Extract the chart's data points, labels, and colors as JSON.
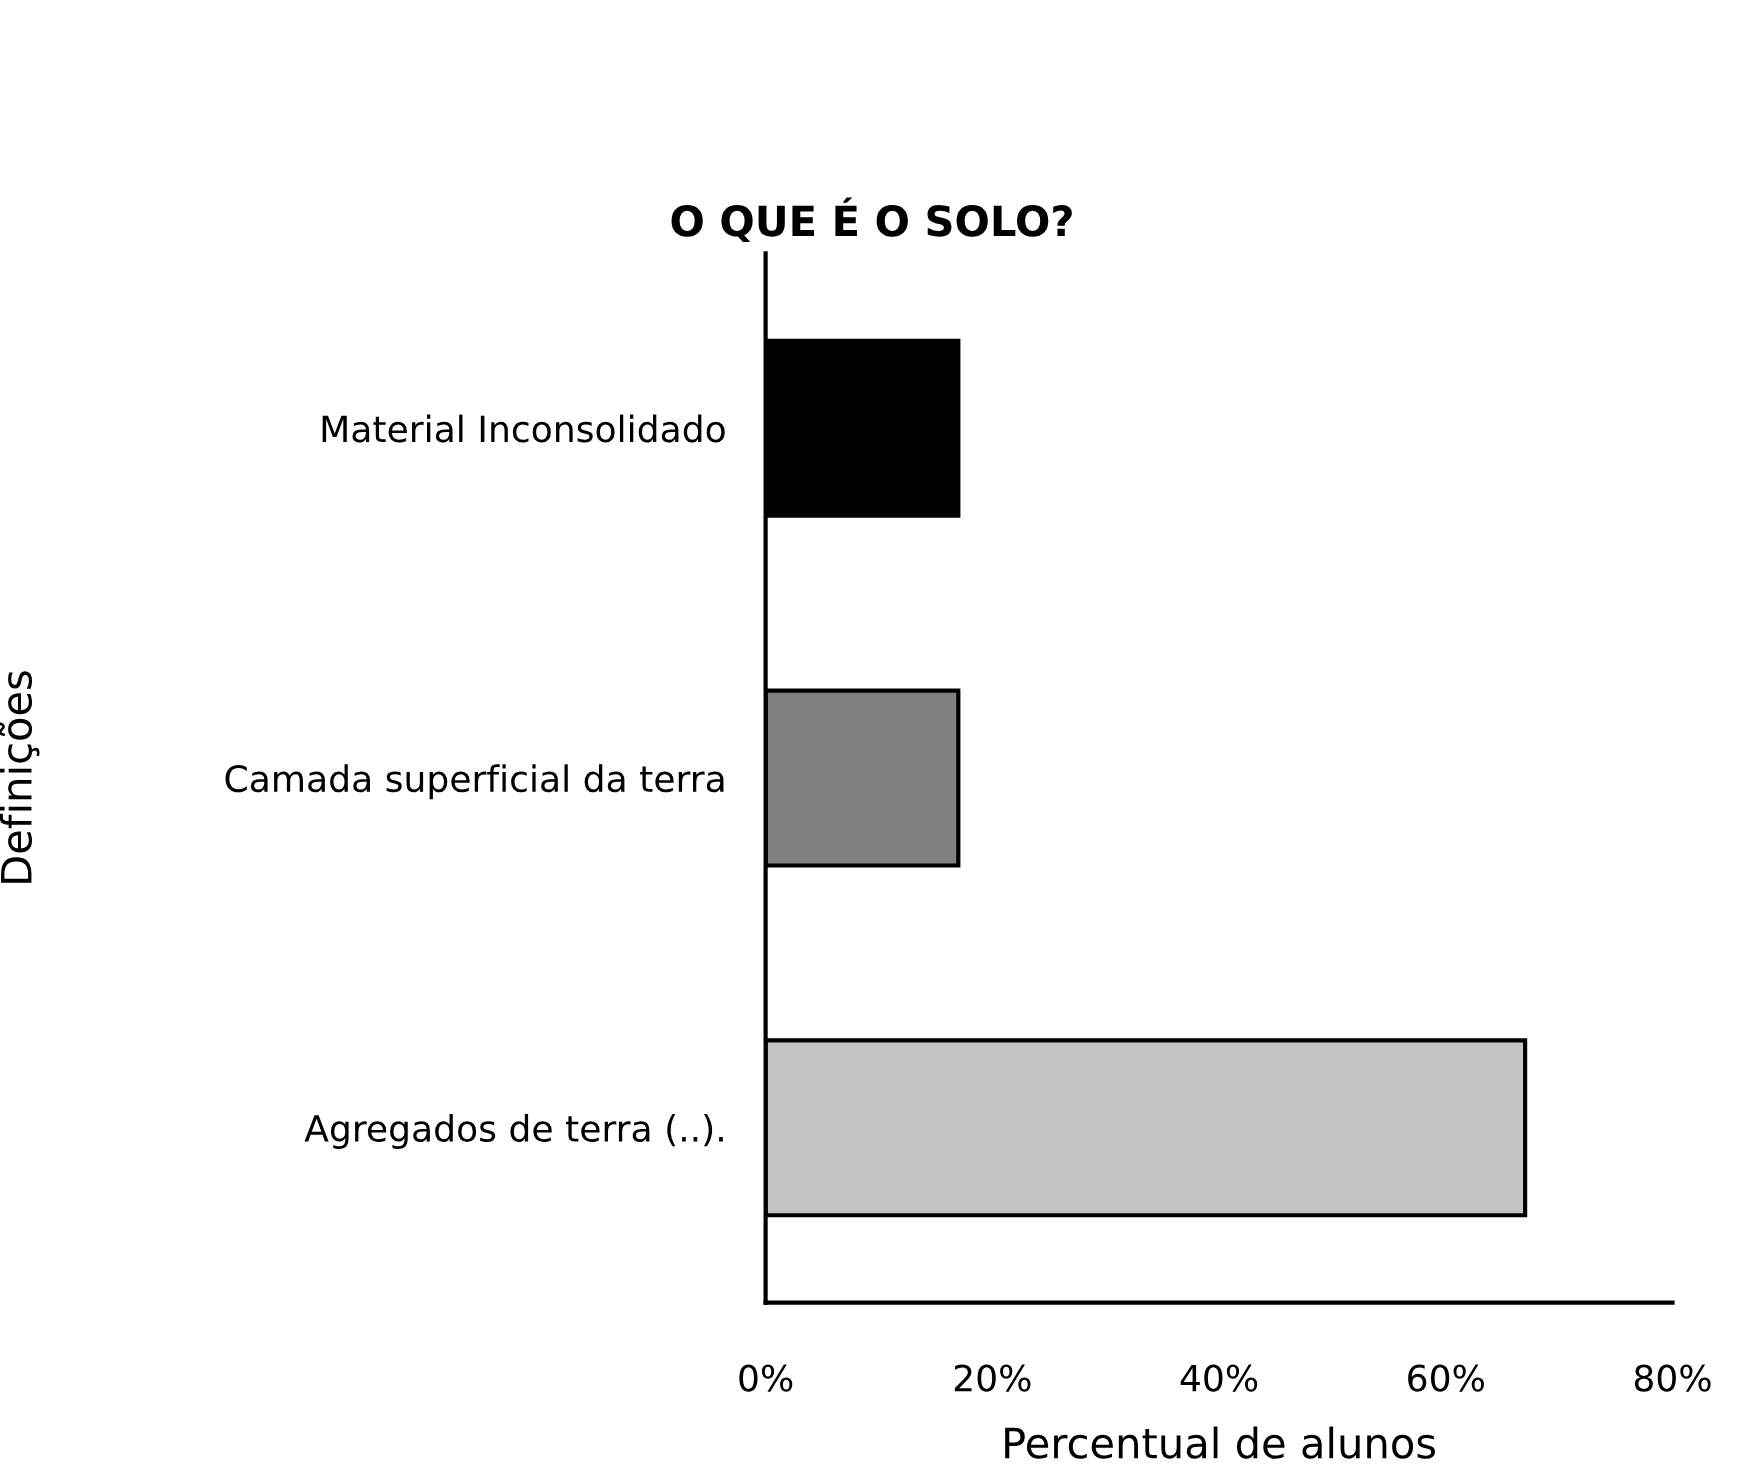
{
  "chart_data": {
    "type": "bar",
    "orientation": "horizontal",
    "title": "O QUE É O SOLO?",
    "xlabel": "Percentual de alunos",
    "ylabel": "Definições",
    "categories": [
      "Material Inconsolidado",
      "Camada superficial da terra",
      "Agregados de terra (..)."
    ],
    "values": [
      17,
      17,
      67
    ],
    "colors": [
      "#000000",
      "#808080",
      "#c4c4c4"
    ],
    "xlim": [
      0,
      80
    ],
    "xticks": [
      {
        "value": 0,
        "label": "0%"
      },
      {
        "value": 20,
        "label": "20%"
      },
      {
        "value": 40,
        "label": "40%"
      },
      {
        "value": 60,
        "label": "60%"
      },
      {
        "value": 80,
        "label": "80%"
      }
    ],
    "grid": false,
    "legend": false
  }
}
